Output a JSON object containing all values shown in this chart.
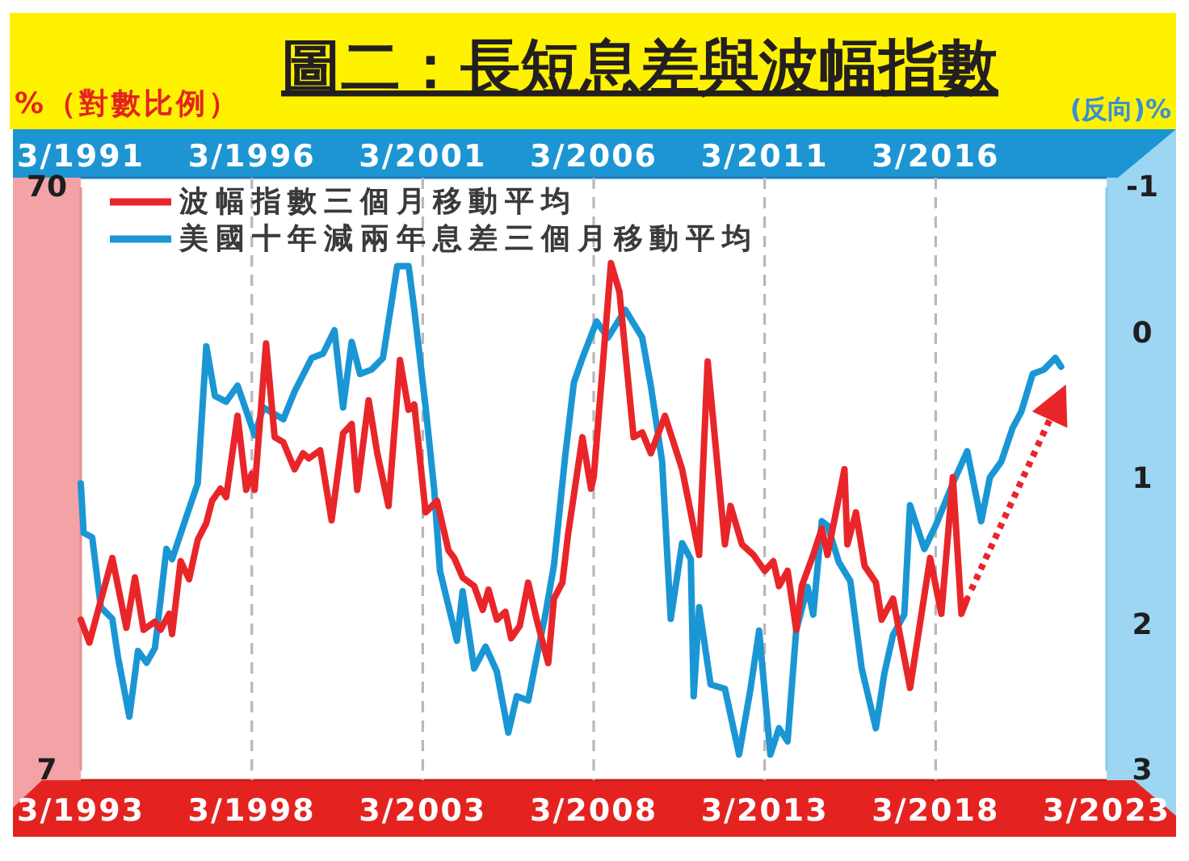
{
  "chart_data": {
    "type": "line",
    "title": "圖二：長短息差與波幅指數",
    "ylabel": "%（對數比例）",
    "y2label": "(反向)%",
    "xlim": [
      "1991-03",
      "2021-03"
    ],
    "xticks": [
      {
        "value": "1991-03",
        "label": "3/1991"
      },
      {
        "value": "1996-03",
        "label": "3/1996"
      },
      {
        "value": "2001-03",
        "label": "3/2001"
      },
      {
        "value": "2006-03",
        "label": "3/2006"
      },
      {
        "value": "2011-03",
        "label": "3/2011"
      },
      {
        "value": "2016-03",
        "label": "3/2016"
      }
    ],
    "x2lim": [
      "1993-03",
      "2023-03"
    ],
    "x2ticks": [
      {
        "value": "1993-03",
        "label": "3/1993"
      },
      {
        "value": "1998-03",
        "label": "3/1998"
      },
      {
        "value": "2003-03",
        "label": "3/2003"
      },
      {
        "value": "2008-03",
        "label": "3/2008"
      },
      {
        "value": "2013-03",
        "label": "3/2013"
      },
      {
        "value": "2018-03",
        "label": "3/2018"
      },
      {
        "value": "2023-03",
        "label": "3/2023"
      }
    ],
    "ylim": [
      7,
      70
    ],
    "yticks": [
      7,
      70
    ],
    "log": "y",
    "y2lim": [
      3,
      -1
    ],
    "y2ticks": [
      -1,
      0,
      1,
      2,
      3
    ],
    "grid": "x",
    "legend": "top left",
    "series": [
      {
        "name": "波幅指數三個月移動平均",
        "color": "#e8262a",
        "axis": "x2",
        "x": [
          "1993-03",
          "1993-06",
          "1994-02",
          "1994-07",
          "1994-10",
          "1995-01",
          "1995-05",
          "1995-07",
          "1995-10",
          "1995-11",
          "1996-02",
          "1996-05",
          "1996-08",
          "1996-11",
          "1997-01",
          "1997-04",
          "1997-06",
          "1997-10",
          "1998-01",
          "1998-03",
          "1998-04",
          "1998-08",
          "1998-11",
          "1999-02",
          "1999-06",
          "1999-09",
          "1999-11",
          "2000-03",
          "2000-07",
          "2000-11",
          "2001-02",
          "2001-04",
          "2001-08",
          "2001-11",
          "2002-03",
          "2002-07",
          "2002-10",
          "2002-12",
          "2003-04",
          "2003-08",
          "2003-12",
          "2004-02",
          "2004-05",
          "2004-09",
          "2004-12",
          "2005-02",
          "2005-05",
          "2005-08",
          "2005-10",
          "2006-01",
          "2006-04",
          "2006-07",
          "2006-11",
          "2007-01",
          "2007-04",
          "2007-06",
          "2007-11",
          "2008-02",
          "2008-03",
          "2008-09",
          "2008-12",
          "2009-05",
          "2009-08",
          "2009-11",
          "2010-04",
          "2010-10",
          "2011-04",
          "2011-07",
          "2012-01",
          "2012-03",
          "2012-07",
          "2012-11",
          "2013-03",
          "2013-06",
          "2013-08",
          "2013-11",
          "2014-02",
          "2014-04",
          "2014-08",
          "2014-11",
          "2015-01",
          "2015-07",
          "2015-08",
          "2015-11",
          "2016-02",
          "2016-06",
          "2016-08",
          "2016-12",
          "2017-06",
          "2017-10",
          "2018-01",
          "2018-05",
          "2018-09",
          "2018-12",
          "2019-02"
        ],
        "values": [
          12.7,
          11.6,
          16.2,
          12.3,
          15.0,
          12.2,
          12.6,
          12.2,
          13.0,
          12.0,
          16.0,
          14.9,
          17.4,
          18.6,
          20.3,
          21.3,
          20.6,
          28.4,
          21.2,
          22.6,
          21.2,
          37.8,
          26.1,
          25.6,
          23.0,
          24.5,
          24.0,
          24.8,
          18.8,
          26.5,
          27.5,
          21.2,
          30.2,
          24.5,
          19.9,
          35.4,
          29.1,
          29.7,
          19.4,
          20.3,
          16.7,
          16.2,
          15.0,
          14.5,
          13.2,
          14.3,
          12.7,
          13.1,
          11.8,
          12.4,
          14.7,
          12.7,
          10.7,
          13.8,
          14.7,
          17.8,
          26.1,
          21.3,
          22.3,
          51.9,
          46.3,
          26.1,
          26.6,
          24.5,
          28.4,
          23.0,
          16.4,
          35.2,
          17.1,
          19.9,
          17.1,
          16.4,
          15.4,
          16.0,
          14.5,
          15.4,
          12.2,
          14.5,
          16.4,
          18.2,
          16.4,
          23.0,
          17.1,
          19.4,
          15.7,
          14.7,
          12.7,
          13.8,
          9.7,
          13.0,
          16.2,
          13.0,
          22.3,
          13.0,
          13.8
        ]
      },
      {
        "name": "美國十年減兩年息差三個月移動平均",
        "color": "#1a96d4",
        "axis": "y2",
        "x": [
          "1991-03",
          "1991-04",
          "1991-07",
          "1991-10",
          "1992-02",
          "1992-04",
          "1992-08",
          "1992-11",
          "1993-02",
          "1993-05",
          "1993-06",
          "1993-09",
          "1993-11",
          "1994-04",
          "1994-08",
          "1994-11",
          "1995-02",
          "1995-06",
          "1995-10",
          "1996-04",
          "1996-07",
          "1997-02",
          "1997-06",
          "1997-12",
          "1998-04",
          "1998-08",
          "1998-11",
          "1999-02",
          "1999-05",
          "1999-09",
          "2000-01",
          "2000-06",
          "2000-10",
          "2000-12",
          "2001-04",
          "2001-07",
          "2001-09",
          "2002-03",
          "2002-05",
          "2002-09",
          "2003-01",
          "2003-05",
          "2003-09",
          "2003-12",
          "2004-04",
          "2004-07",
          "2004-10",
          "2005-01",
          "2005-05",
          "2005-08",
          "2005-11",
          "2006-04",
          "2006-08",
          "2007-02",
          "2007-08",
          "2007-11",
          "2008-03",
          "2008-06",
          "2008-10",
          "2009-01",
          "2009-02",
          "2009-04",
          "2009-08",
          "2010-01",
          "2010-06",
          "2010-10",
          "2011-01",
          "2011-05",
          "2011-08",
          "2011-11",
          "2012-02",
          "2012-06",
          "2012-08",
          "2012-11",
          "2013-01",
          "2013-05",
          "2013-09",
          "2014-01",
          "2014-06",
          "2014-09",
          "2014-12",
          "2015-04",
          "2015-06",
          "2015-11",
          "2016-03",
          "2016-09",
          "2017-02",
          "2017-07",
          "2017-10",
          "2018-02",
          "2018-06",
          "2018-09",
          "2019-01",
          "2019-05",
          "2019-09",
          "2019-11"
        ],
        "values": [
          1.03,
          1.37,
          1.4,
          1.88,
          1.96,
          2.22,
          2.63,
          2.18,
          2.26,
          2.16,
          1.99,
          1.48,
          1.55,
          1.26,
          1.03,
          0.09,
          0.43,
          0.47,
          0.36,
          0.7,
          0.51,
          0.59,
          0.4,
          0.17,
          0.14,
          -0.02,
          0.51,
          0.06,
          0.28,
          0.25,
          0.17,
          -0.46,
          -0.46,
          -0.16,
          0.51,
          1.07,
          1.63,
          2.11,
          1.77,
          2.3,
          2.15,
          2.32,
          2.74,
          2.49,
          2.52,
          2.22,
          1.93,
          1.59,
          0.84,
          0.34,
          0.17,
          -0.08,
          0.03,
          -0.16,
          0.03,
          0.36,
          0.88,
          1.96,
          1.44,
          1.55,
          2.49,
          1.88,
          2.41,
          2.44,
          2.89,
          2.44,
          2.04,
          2.89,
          2.71,
          2.8,
          2.04,
          1.74,
          1.93,
          1.29,
          1.32,
          1.57,
          1.7,
          2.3,
          2.71,
          2.33,
          2.07,
          1.93,
          1.18,
          1.48,
          1.32,
          1.03,
          0.81,
          1.29,
          0.99,
          0.88,
          0.65,
          0.54,
          0.28,
          0.25,
          0.17,
          0.23
        ]
      }
    ]
  }
}
